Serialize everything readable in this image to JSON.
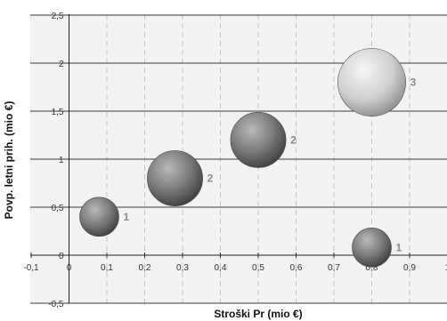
{
  "chart_data": {
    "type": "bubble",
    "xlabel": "Stroški Pr (mio €)",
    "ylabel": "Povp. letni prih. (mio €)",
    "xlim": [
      -0.1,
      1.0
    ],
    "ylim": [
      -0.5,
      2.5
    ],
    "x_ticks": [
      "-0,1",
      "0",
      "0,1",
      "0,2",
      "0,3",
      "0,4",
      "0,5",
      "0,6",
      "0,7",
      "0,8",
      "0,9",
      "1"
    ],
    "y_ticks": [
      "-0,5",
      "0",
      "0,5",
      "1",
      "1,5",
      "2",
      "2,5"
    ],
    "x_grid": "dashed",
    "y_grid": "solid",
    "legend": "none",
    "points": [
      {
        "x": 0.08,
        "y": 0.4,
        "size": 1,
        "label": "1"
      },
      {
        "x": 0.28,
        "y": 0.8,
        "size": 2,
        "label": "2"
      },
      {
        "x": 0.5,
        "y": 1.2,
        "size": 2,
        "label": "2"
      },
      {
        "x": 0.8,
        "y": 1.8,
        "size": 3,
        "label": "3"
      },
      {
        "x": 0.8,
        "y": 0.08,
        "size": 1,
        "label": "1"
      }
    ],
    "colors": {
      "bubble_dark_light": "#b9b9b9",
      "bubble_dark_mid": "#7a7a7a",
      "bubble_dark_edge": "#3e3e3e",
      "bubble_light_light": "#f6f6f6",
      "bubble_light_mid": "#cfcfcf",
      "bubble_light_edge": "#8f8f8f",
      "label": "#8a8a8a"
    }
  }
}
